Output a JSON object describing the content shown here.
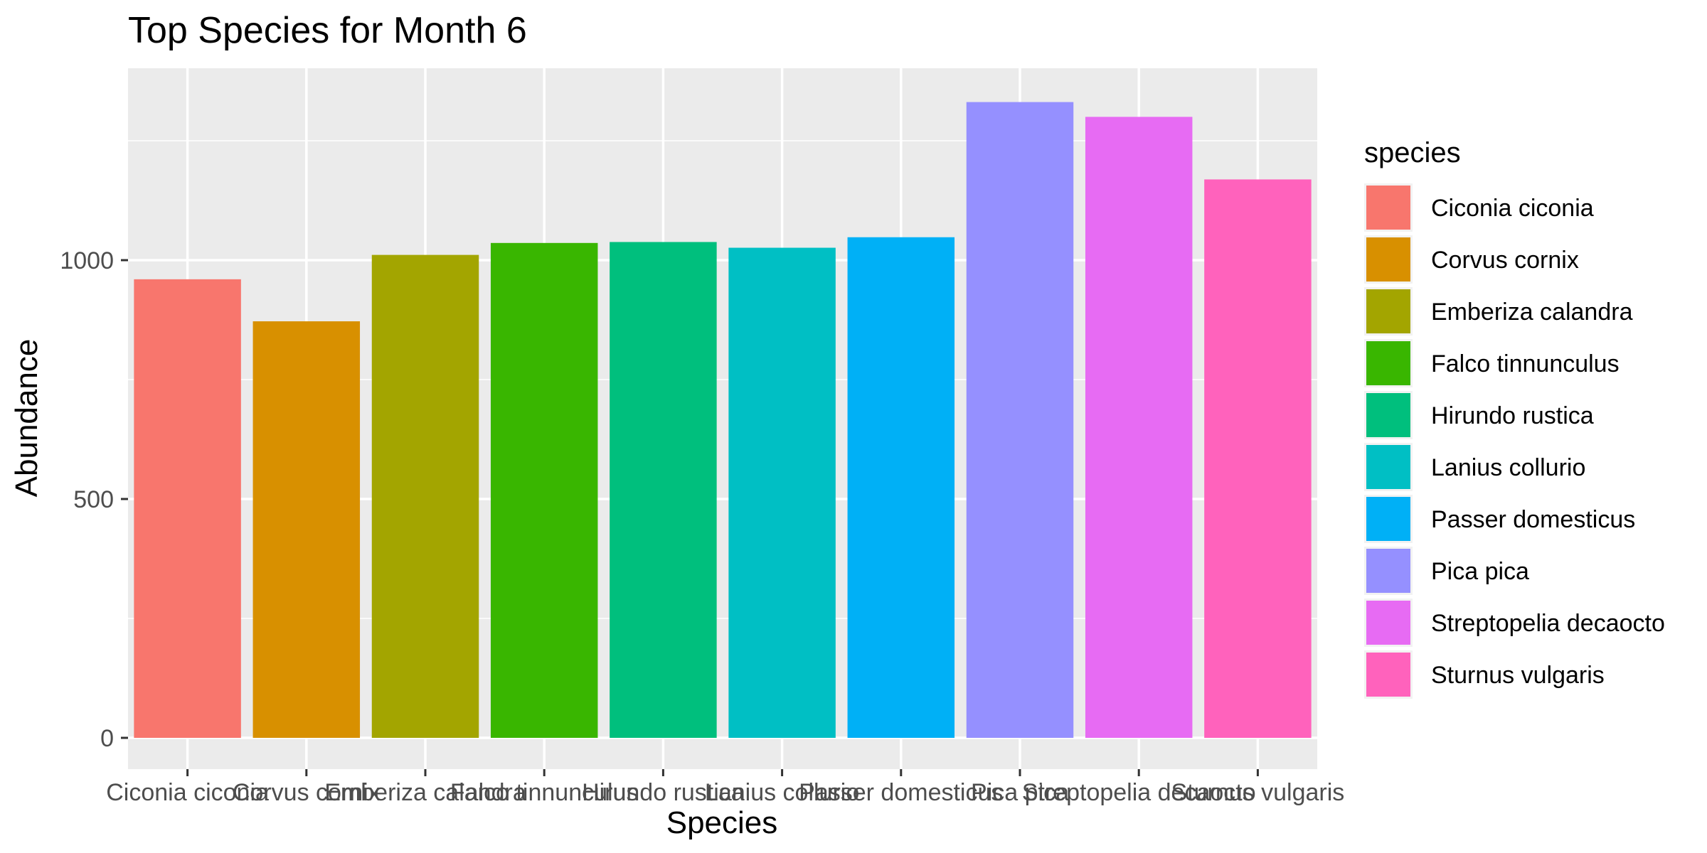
{
  "chart_data": {
    "type": "bar",
    "title": "Top Species for Month 6",
    "xlabel": "Species",
    "ylabel": "Abundance",
    "ylim": [
      0,
      1400
    ],
    "yticks": [
      0,
      500,
      1000
    ],
    "grid": true,
    "legend_title": "species",
    "legend_position": "right",
    "categories": [
      "Ciconia ciconia",
      "Corvus cornix",
      "Emberiza calandra",
      "Falco tinnunculus",
      "Hirundo rustica",
      "Lanius collurio",
      "Passer domesticus",
      "Pica pica",
      "Streptopelia decaocto",
      "Sturnus vulgaris"
    ],
    "values": [
      960,
      872,
      1011,
      1036,
      1038,
      1026,
      1048,
      1331,
      1300,
      1169
    ],
    "colors": [
      "#F8766D",
      "#D89000",
      "#A3A500",
      "#39B600",
      "#00BF7D",
      "#00BFC4",
      "#00B0F6",
      "#9590FF",
      "#E76BF3",
      "#FF62BC"
    ],
    "panel_background": "#EBEBEB",
    "grid_color": "#FFFFFF"
  }
}
